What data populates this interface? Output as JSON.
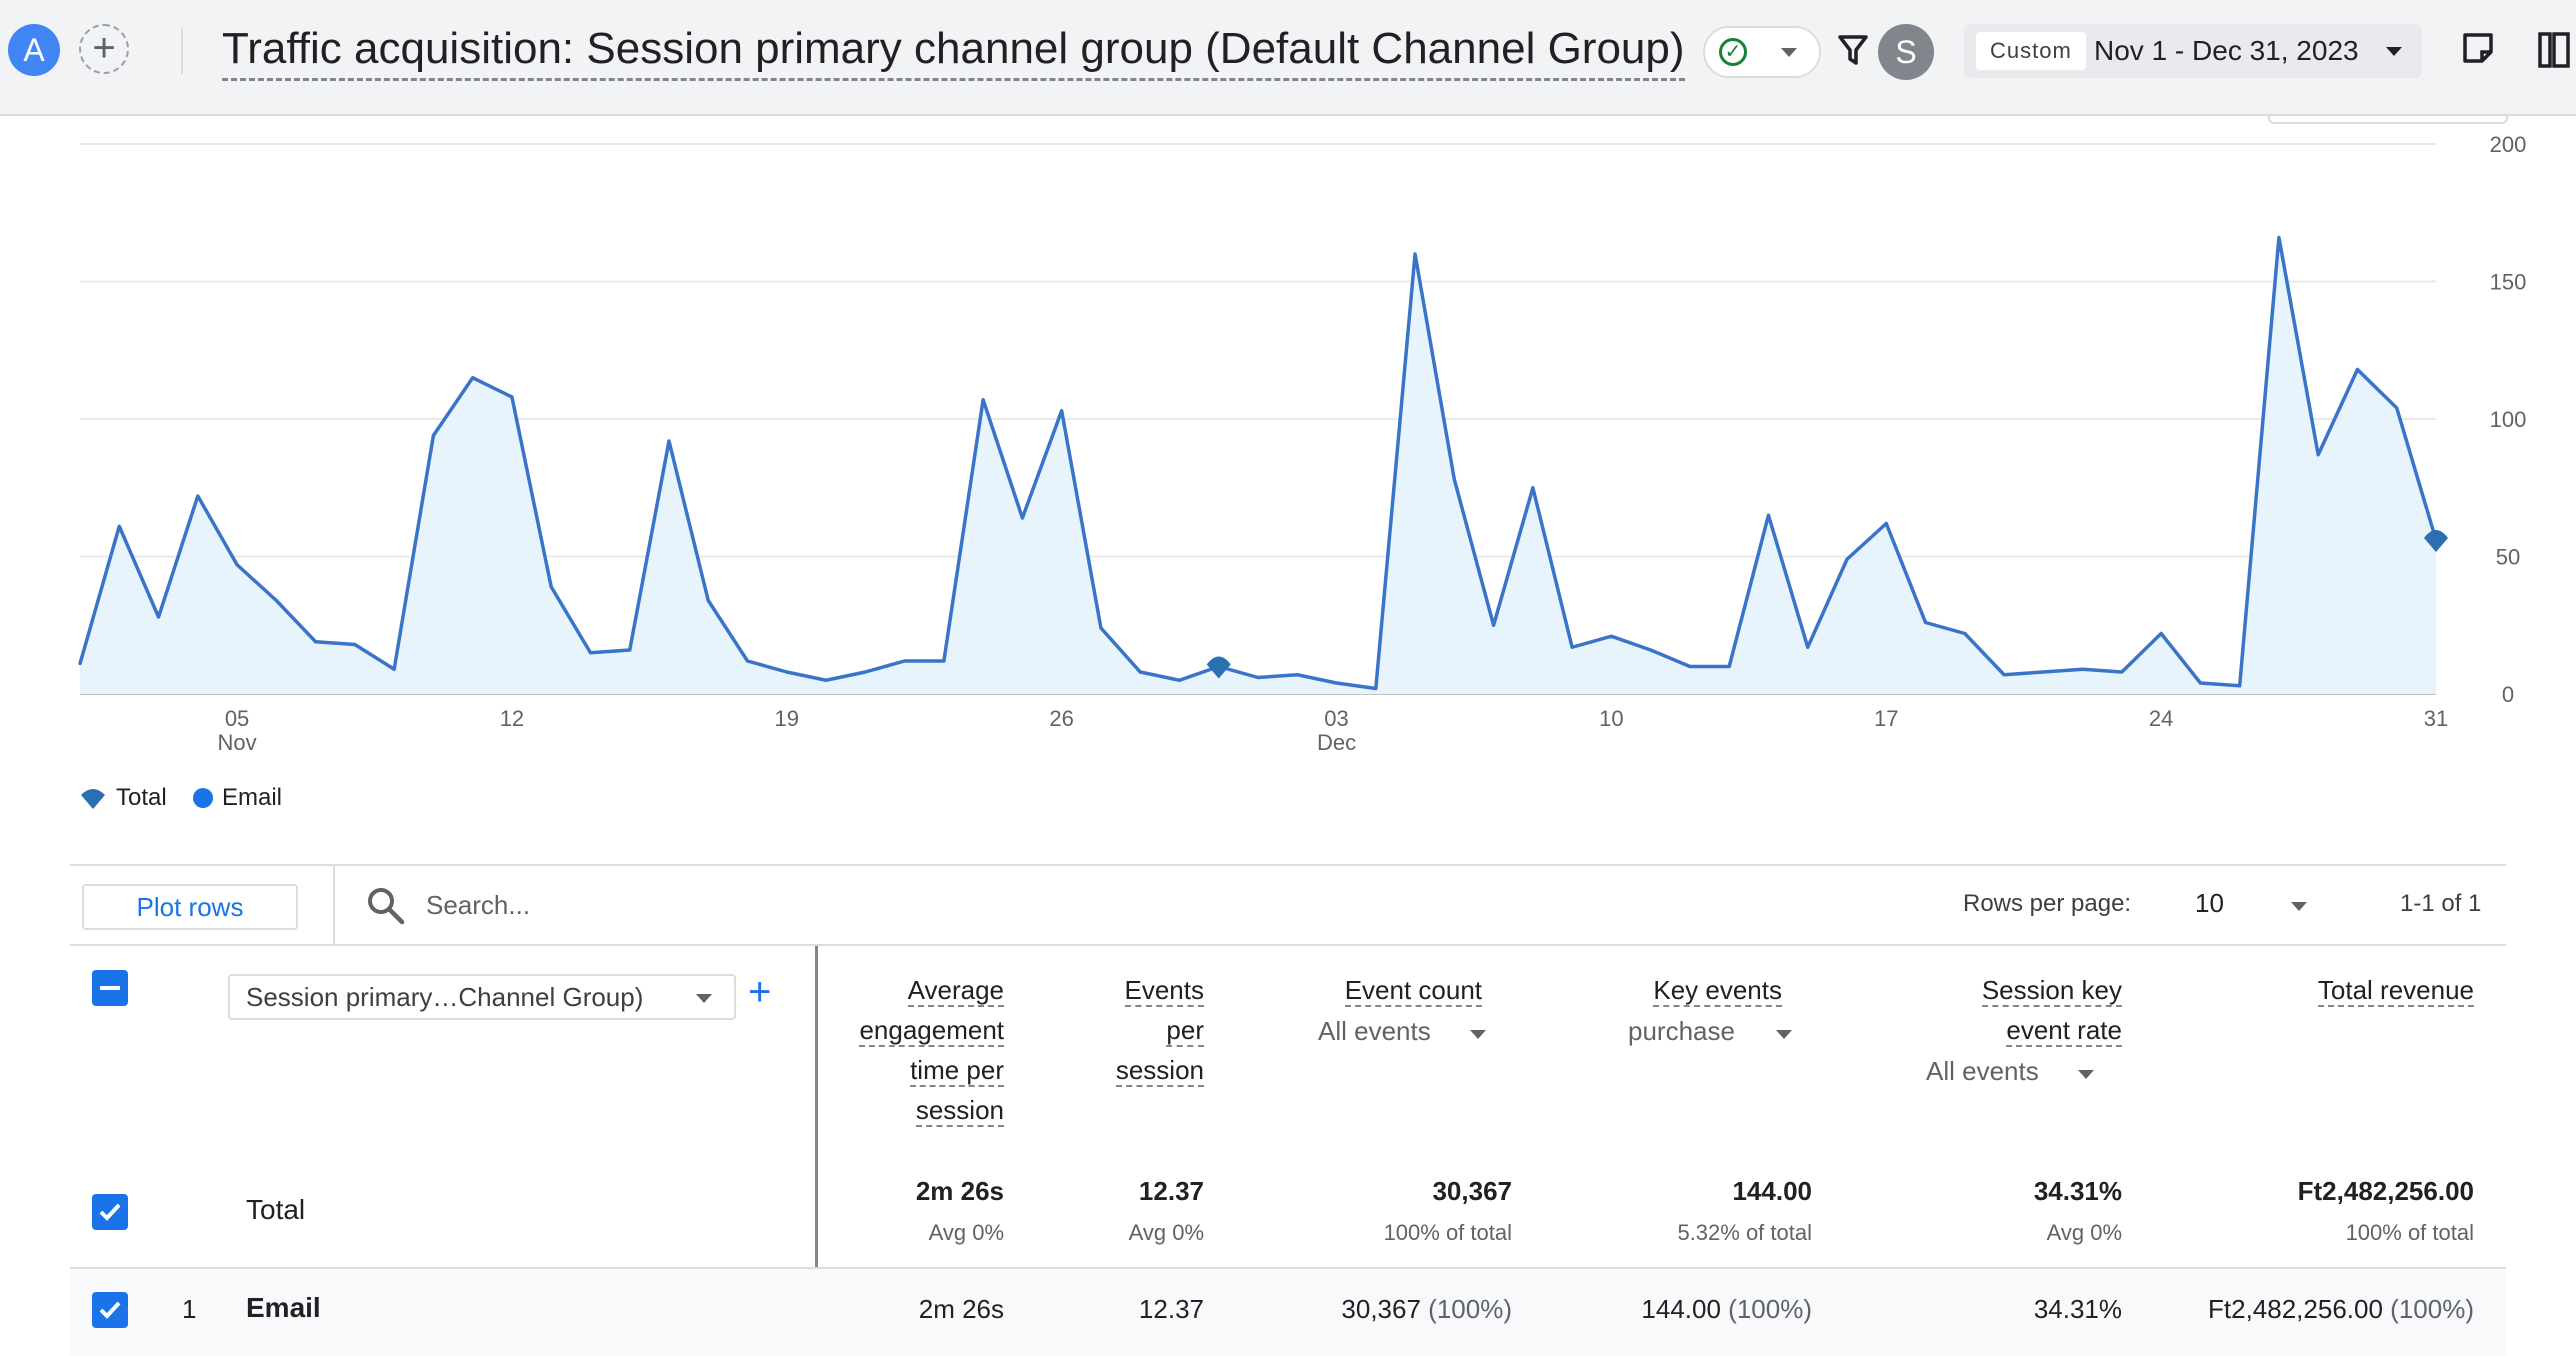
{
  "header": {
    "avatar_letter": "A",
    "title": "Traffic acquisition: Session primary channel group (Default Channel Group)",
    "user_initial": "S",
    "date_chip": "Custom",
    "date_range": "Nov 1 - Dec 31, 2023"
  },
  "chart_data": {
    "type": "area",
    "x_start": "2023-11-01",
    "x_end": "2023-12-31",
    "x_tick_labels": [
      {
        "date": "2023-11-05",
        "day": "05",
        "month": "Nov"
      },
      {
        "date": "2023-11-12",
        "day": "12",
        "month": ""
      },
      {
        "date": "2023-11-19",
        "day": "19",
        "month": ""
      },
      {
        "date": "2023-11-26",
        "day": "26",
        "month": ""
      },
      {
        "date": "2023-12-03",
        "day": "03",
        "month": "Dec"
      },
      {
        "date": "2023-12-10",
        "day": "10",
        "month": ""
      },
      {
        "date": "2023-12-17",
        "day": "17",
        "month": ""
      },
      {
        "date": "2023-12-24",
        "day": "24",
        "month": ""
      },
      {
        "date": "2023-12-31",
        "day": "31",
        "month": ""
      }
    ],
    "ylim": [
      0,
      200
    ],
    "y_ticks": [
      0,
      50,
      100,
      150,
      200
    ],
    "grid": true,
    "legend_position": "bottom-left",
    "colors": {
      "line": "#3a74c8",
      "fill": "#e8f4fc",
      "marker": "#2a6fb0"
    },
    "series": [
      {
        "name": "Email",
        "values": [
          11,
          61,
          28,
          72,
          47,
          34,
          19,
          18,
          9,
          94,
          115,
          108,
          39,
          15,
          16,
          92,
          34,
          12,
          8,
          5,
          8,
          12,
          12,
          107,
          64,
          103,
          24,
          8,
          5,
          10,
          6,
          7,
          4,
          2,
          160,
          78,
          25,
          75,
          17,
          21,
          16,
          10,
          10,
          65,
          17,
          49,
          62,
          26,
          22,
          7,
          8,
          9,
          8,
          22,
          4,
          3,
          166,
          87,
          118,
          104,
          56
        ]
      }
    ],
    "markers": [
      {
        "label": "Total",
        "date": "2023-11-30"
      },
      {
        "label": "Total",
        "date": "2023-12-31"
      }
    ]
  },
  "legend": [
    "Total",
    "Email"
  ],
  "toolbar": {
    "plot_rows": "Plot rows",
    "search_placeholder": "Search...",
    "rows_per_page_label": "Rows per page:",
    "rows_per_page_value": "10",
    "pagination": "1-1 of 1"
  },
  "table": {
    "dimension_label": "Session primary…Channel Group)",
    "columns": [
      {
        "title_lines": [
          "Average",
          "engagement",
          "time per",
          "session"
        ],
        "sub": ""
      },
      {
        "title_lines": [
          "Events",
          "per",
          "session"
        ],
        "sub": ""
      },
      {
        "title_lines": [
          "Event count"
        ],
        "sub": "All events"
      },
      {
        "title_lines": [
          "Key events"
        ],
        "sub": "purchase"
      },
      {
        "title_lines": [
          "Session key",
          "event rate"
        ],
        "sub": "All events"
      },
      {
        "title_lines": [
          "Total revenue"
        ],
        "sub": ""
      }
    ],
    "total": {
      "label": "Total",
      "values": [
        "2m 26s",
        "12.37",
        "30,367",
        "144.00",
        "34.31%",
        "Ft2,482,256.00"
      ],
      "subs": [
        "Avg 0%",
        "Avg 0%",
        "100% of total",
        "5.32% of total",
        "Avg 0%",
        "100% of total"
      ]
    },
    "rows": [
      {
        "index": "1",
        "name": "Email",
        "values": [
          "2m 26s",
          "12.37",
          "30,367",
          "144.00",
          "34.31%",
          "Ft2,482,256.00"
        ],
        "pcts": [
          "",
          "",
          "(100%)",
          "(100%)",
          "",
          "(100%)"
        ]
      }
    ]
  }
}
